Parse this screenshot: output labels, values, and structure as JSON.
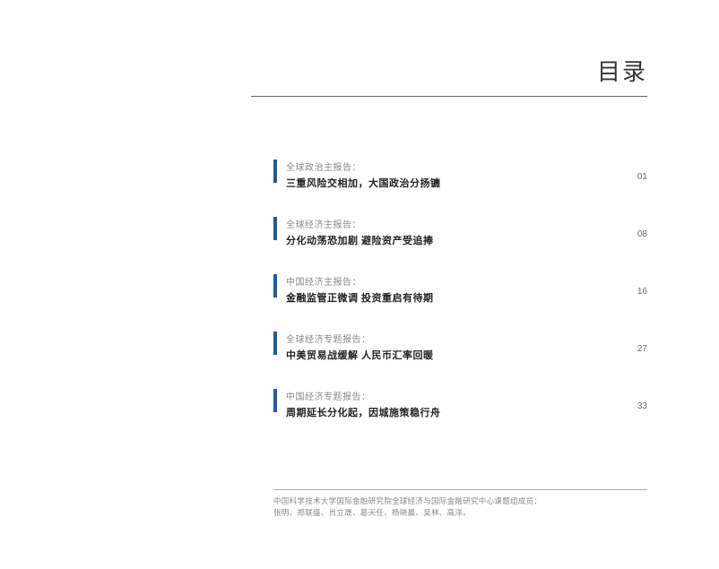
{
  "title": "目录",
  "toc": [
    {
      "category": "全球政治主报告：",
      "heading": "三重风险交相加，大国政治分扬镳",
      "page": "01"
    },
    {
      "category": "全球经济主报告：",
      "heading": "分化动荡恐加剧 避险资产受追捧",
      "page": "08"
    },
    {
      "category": "中国经济主报告：",
      "heading": "金融监管正微调 投资重启有待期",
      "page": "16"
    },
    {
      "category": "全球经济专题报告：",
      "heading": "中美贸易战缓解 人民币汇率回暖",
      "page": "27"
    },
    {
      "category": "中国经济专题报告：",
      "heading": "周期延长分化起，因城施策稳行舟",
      "page": "33"
    }
  ],
  "footer": {
    "line1": "中国科学技术大学国际金融研究院全球经济与国际金融研究中心课题组成员：",
    "line2": "张明、郑联盛、肖立晟、葛天任、杨晓晨、吴林、高洋。"
  },
  "colors": {
    "blue_bar": "#1e5ba8",
    "title_text": "#333333",
    "category_text": "#888888",
    "heading_text": "#222222",
    "page_text": "#666666",
    "footer_text": "#888888",
    "border": "#666666",
    "footer_border": "#aaaaaa",
    "background": "#ffffff"
  },
  "typography": {
    "title_fontsize": 26,
    "category_fontsize": 10,
    "heading_fontsize": 11,
    "page_fontsize": 10,
    "footer_fontsize": 8.5
  }
}
